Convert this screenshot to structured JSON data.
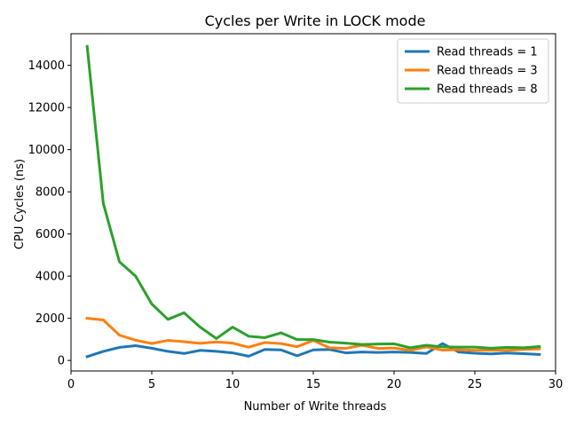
{
  "chart_data": {
    "type": "line",
    "title": "Cycles per Write in LOCK mode",
    "xlabel": "Number of Write threads",
    "ylabel": "CPU Cycles (ns)",
    "xlim": [
      0,
      30
    ],
    "ylim": [
      -500,
      15500
    ],
    "xticks": [
      0,
      5,
      10,
      15,
      20,
      25,
      30
    ],
    "yticks": [
      0,
      2000,
      4000,
      6000,
      8000,
      10000,
      12000,
      14000
    ],
    "grid": false,
    "legend_position": "top-right",
    "x": [
      1,
      2,
      3,
      4,
      5,
      6,
      7,
      8,
      9,
      10,
      11,
      12,
      13,
      14,
      15,
      16,
      17,
      18,
      19,
      20,
      21,
      22,
      23,
      24,
      25,
      26,
      27,
      28,
      29
    ],
    "series": [
      {
        "name": "Read threads = 1",
        "color": "#1f77b4",
        "values": [
          180,
          430,
          620,
          700,
          580,
          430,
          330,
          480,
          430,
          360,
          200,
          520,
          500,
          220,
          500,
          520,
          360,
          400,
          380,
          400,
          380,
          330,
          800,
          400,
          340,
          310,
          350,
          320,
          280
        ]
      },
      {
        "name": "Read threads = 3",
        "color": "#ff7f0e",
        "values": [
          2000,
          1920,
          1200,
          960,
          800,
          950,
          890,
          810,
          880,
          820,
          630,
          850,
          800,
          650,
          950,
          600,
          570,
          720,
          570,
          590,
          480,
          640,
          490,
          510,
          480,
          490,
          480,
          520,
          550
        ]
      },
      {
        "name": "Read threads = 8",
        "color": "#2ca02c",
        "values": [
          14900,
          7450,
          4680,
          4000,
          2680,
          1950,
          2260,
          1580,
          1040,
          1580,
          1150,
          1080,
          1310,
          990,
          990,
          870,
          820,
          760,
          780,
          790,
          600,
          720,
          640,
          630,
          630,
          580,
          620,
          600,
          660
        ]
      }
    ]
  }
}
